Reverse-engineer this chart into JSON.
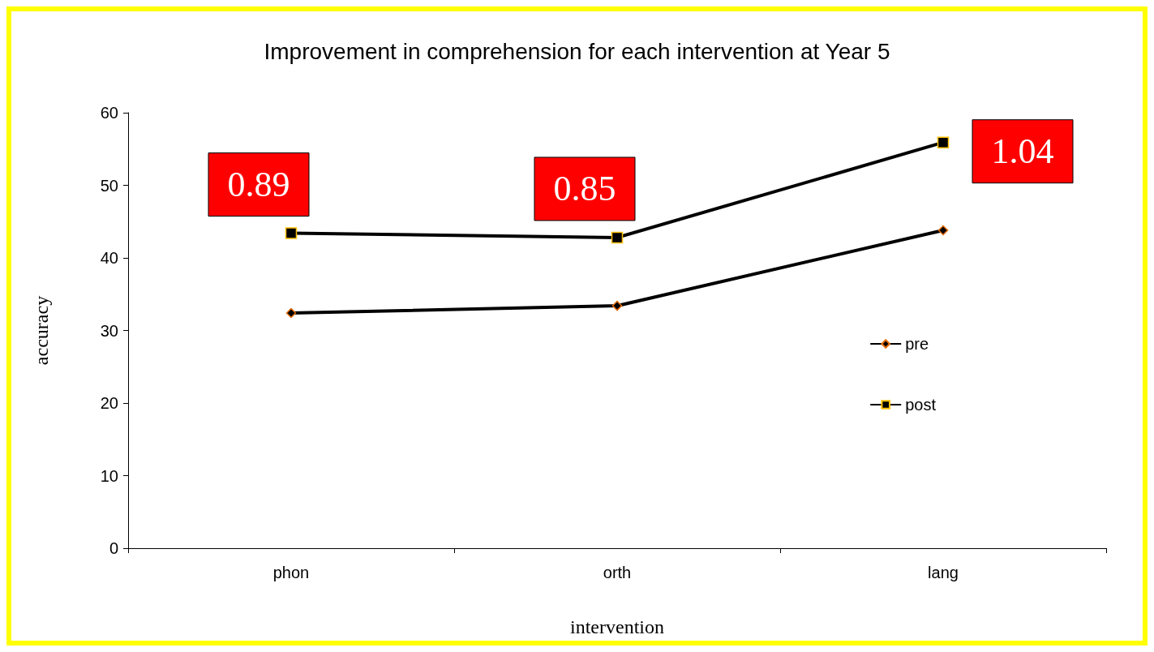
{
  "chart_data": {
    "type": "line",
    "title": "Improvement in comprehension for each intervention at Year 5",
    "xlabel": "intervention",
    "ylabel": "accuracy",
    "categories": [
      "phon",
      "orth",
      "lang"
    ],
    "series": [
      {
        "name": "pre",
        "color": "#000000",
        "marker": "diamond",
        "values": [
          32.4,
          33.4,
          43.8
        ]
      },
      {
        "name": "post",
        "color": "#000000",
        "marker": "square",
        "values": [
          43.4,
          42.8,
          55.9
        ]
      }
    ],
    "annotations": [
      {
        "text": "0.89",
        "x": "phon",
        "y": 43.4
      },
      {
        "text": "0.85",
        "x": "orth",
        "y": 42.8
      },
      {
        "text": "1.04",
        "x": "lang",
        "y": 55.9
      }
    ],
    "ylim": [
      0,
      60
    ],
    "yticks": [
      0,
      10,
      20,
      30,
      40,
      50,
      60
    ],
    "grid": false,
    "legend": "right",
    "line_style": "solid"
  }
}
